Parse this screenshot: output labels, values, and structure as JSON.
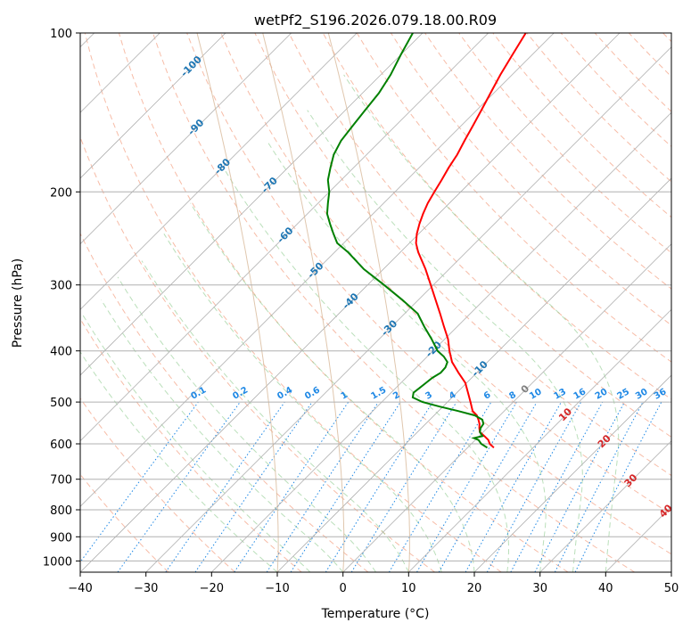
{
  "chart_data": {
    "type": "line",
    "title": "wetPf2_S196.2026.079.18.00.R09",
    "xlabel": "Temperature (°C)",
    "ylabel": "Pressure (hPa)",
    "xlim": [
      -40,
      50
    ],
    "ylim": [
      1050,
      100
    ],
    "x_ticks": [
      -40,
      -30,
      -20,
      -10,
      0,
      10,
      20,
      30,
      40,
      50
    ],
    "y_ticks": [
      100,
      200,
      300,
      400,
      500,
      600,
      700,
      800,
      900,
      1000
    ],
    "skew": true,
    "series": [
      {
        "name": "Temperature",
        "color": "#ff0000",
        "points": [
          [
            610,
            4.0
          ],
          [
            600,
            2.8
          ],
          [
            590,
            2.0
          ],
          [
            580,
            0.8
          ],
          [
            570,
            -0.5
          ],
          [
            560,
            -1.2
          ],
          [
            550,
            -1.8
          ],
          [
            540,
            -2.6
          ],
          [
            530,
            -3.5
          ],
          [
            520,
            -4.8
          ],
          [
            500,
            -6.5
          ],
          [
            480,
            -8.3
          ],
          [
            460,
            -10.2
          ],
          [
            440,
            -12.8
          ],
          [
            420,
            -15.4
          ],
          [
            400,
            -17.5
          ],
          [
            380,
            -19.5
          ],
          [
            360,
            -22.0
          ],
          [
            340,
            -24.6
          ],
          [
            320,
            -27.4
          ],
          [
            300,
            -30.4
          ],
          [
            280,
            -33.6
          ],
          [
            260,
            -37.3
          ],
          [
            250,
            -39.0
          ],
          [
            240,
            -40.3
          ],
          [
            230,
            -41.4
          ],
          [
            220,
            -42.4
          ],
          [
            210,
            -43.3
          ],
          [
            200,
            -44.0
          ],
          [
            190,
            -44.7
          ],
          [
            180,
            -45.5
          ],
          [
            170,
            -46.2
          ],
          [
            160,
            -47.2
          ],
          [
            150,
            -48.2
          ],
          [
            140,
            -49.3
          ],
          [
            130,
            -50.5
          ],
          [
            120,
            -51.8
          ],
          [
            110,
            -53.0
          ],
          [
            100,
            -54.3
          ]
        ]
      },
      {
        "name": "Dewpoint",
        "color": "#008000",
        "points": [
          [
            610,
            3.0
          ],
          [
            600,
            1.5
          ],
          [
            590,
            0.5
          ],
          [
            585,
            -0.5
          ],
          [
            580,
            0.5
          ],
          [
            570,
            -0.5
          ],
          [
            560,
            -1.0
          ],
          [
            550,
            -1.2
          ],
          [
            540,
            -2.0
          ],
          [
            530,
            -3.8
          ],
          [
            520,
            -7.0
          ],
          [
            510,
            -10.5
          ],
          [
            500,
            -13.8
          ],
          [
            490,
            -16.0
          ],
          [
            480,
            -16.6
          ],
          [
            470,
            -16.4
          ],
          [
            460,
            -16.2
          ],
          [
            450,
            -16.0
          ],
          [
            440,
            -15.5
          ],
          [
            430,
            -15.6
          ],
          [
            420,
            -16.1
          ],
          [
            410,
            -17.5
          ],
          [
            400,
            -19.3
          ],
          [
            380,
            -22.0
          ],
          [
            360,
            -25.0
          ],
          [
            340,
            -28.0
          ],
          [
            320,
            -32.5
          ],
          [
            300,
            -37.5
          ],
          [
            280,
            -43.0
          ],
          [
            260,
            -48.0
          ],
          [
            250,
            -51.0
          ],
          [
            240,
            -53.0
          ],
          [
            230,
            -55.0
          ],
          [
            220,
            -57.0
          ],
          [
            210,
            -58.5
          ],
          [
            200,
            -60.0
          ],
          [
            190,
            -62.0
          ],
          [
            180,
            -63.5
          ],
          [
            170,
            -65.0
          ],
          [
            160,
            -66.0
          ],
          [
            150,
            -66.5
          ],
          [
            140,
            -67.0
          ],
          [
            130,
            -67.5
          ],
          [
            120,
            -68.5
          ],
          [
            110,
            -70.0
          ],
          [
            100,
            -71.5
          ]
        ]
      }
    ],
    "mixing_ratio_labels": [
      "0.1",
      "0.2",
      "0.4",
      "0.6",
      "1",
      "1.5",
      "2",
      "3",
      "4",
      "6",
      "8",
      "10",
      "13",
      "16",
      "20",
      "25",
      "30",
      "36"
    ],
    "isotherm_labels": [
      "-100",
      "-90",
      "-80",
      "-70",
      "-60",
      "-50",
      "-40",
      "-30",
      "-20",
      "-10",
      "0",
      "10",
      "20",
      "30",
      "40"
    ],
    "colors": {
      "isobar": "#b0b0b0",
      "isotherm_label": "#1f77b4",
      "dry_adiabat": "#f4a58a",
      "moist_adiabat": "#8cc98c",
      "mixing_ratio": "#1e88e5",
      "warm_label": "#d62728",
      "zero_label": "#808080"
    }
  }
}
